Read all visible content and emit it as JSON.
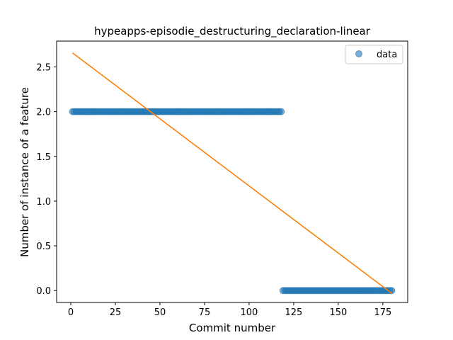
{
  "chart_data": {
    "type": "scatter",
    "title": "hypeapps-episodie_destructuring_declaration-linear",
    "xlabel": "Commit number",
    "ylabel": "Number of instance of a feature",
    "xlim": [
      -7.95,
      188.95
    ],
    "ylim": [
      -0.1328,
      2.7888
    ],
    "xticks": [
      0,
      25,
      50,
      75,
      100,
      125,
      150,
      175
    ],
    "yticks": [
      0.0,
      0.5,
      1.0,
      1.5,
      2.0,
      2.5
    ],
    "ytick_labels": [
      "0.0",
      "0.5",
      "1.0",
      "1.5",
      "2.0",
      "2.5"
    ],
    "grid": false,
    "legend_position": "top-right",
    "series": [
      {
        "name": "data",
        "kind": "scatter",
        "color": "#1f77b4",
        "segments": [
          {
            "x_start": 1,
            "x_end": 118,
            "y": 2
          },
          {
            "x_start": 119,
            "x_end": 180,
            "y": 0
          }
        ]
      },
      {
        "kind": "line",
        "color": "#ff7f0e",
        "x": [
          1,
          180
        ],
        "y": [
          2.656,
          -0.031
        ]
      }
    ]
  }
}
